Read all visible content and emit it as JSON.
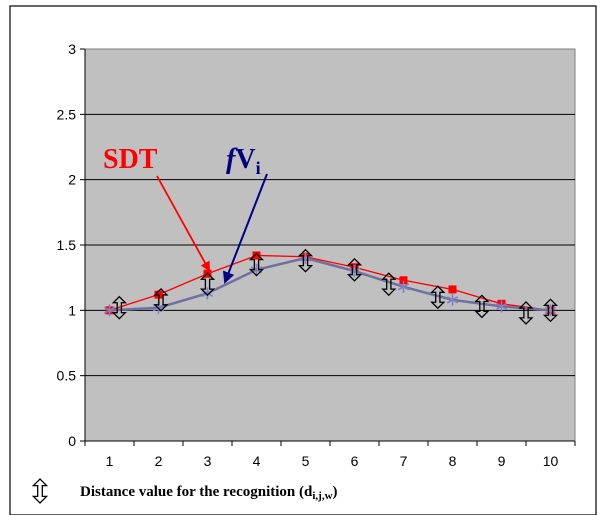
{
  "chart_data": {
    "type": "line",
    "x": [
      1,
      2,
      3,
      4,
      5,
      6,
      7,
      8,
      9,
      10
    ],
    "ylim": [
      0,
      3
    ],
    "yticks": [
      "0",
      "0.5",
      "1",
      "1.5",
      "2",
      "2.5",
      "3"
    ],
    "xticks": [
      "1",
      "2",
      "3",
      "4",
      "5",
      "6",
      "7",
      "8",
      "9",
      "10"
    ],
    "grid": true,
    "plot_background": "#c0c0c0",
    "series": [
      {
        "name": "SDT",
        "color": "#ff0000",
        "marker": "square",
        "values": [
          1.0,
          1.12,
          1.28,
          1.42,
          1.41,
          1.33,
          1.23,
          1.16,
          1.05,
          1.0
        ]
      },
      {
        "name": "fVi",
        "color": "#7070a0",
        "marker": "star",
        "values": [
          1.0,
          1.02,
          1.13,
          1.31,
          1.4,
          1.3,
          1.18,
          1.08,
          1.03,
          1.0
        ]
      },
      {
        "name": "Distance value for the recognition (di,j,w)",
        "color": "#000000",
        "marker": "diamond-arrow",
        "points": [
          [
            1.2,
            1.02
          ],
          [
            2.05,
            1.08
          ],
          [
            3.0,
            1.2
          ],
          [
            4.0,
            1.35
          ],
          [
            5.0,
            1.38
          ],
          [
            6.0,
            1.31
          ],
          [
            6.7,
            1.2
          ],
          [
            7.7,
            1.1
          ],
          [
            8.6,
            1.03
          ],
          [
            9.5,
            0.98
          ],
          [
            10.0,
            1.0
          ]
        ]
      }
    ],
    "annotations": {
      "sdt": "SDT",
      "fv_italic": "f",
      "fv_main": "V",
      "fv_sub": "i"
    },
    "legend": {
      "text_main": "Distance value for the recognition (d",
      "text_sub": "i,j,w",
      "text_end": ")",
      "placement": "bottom"
    }
  }
}
